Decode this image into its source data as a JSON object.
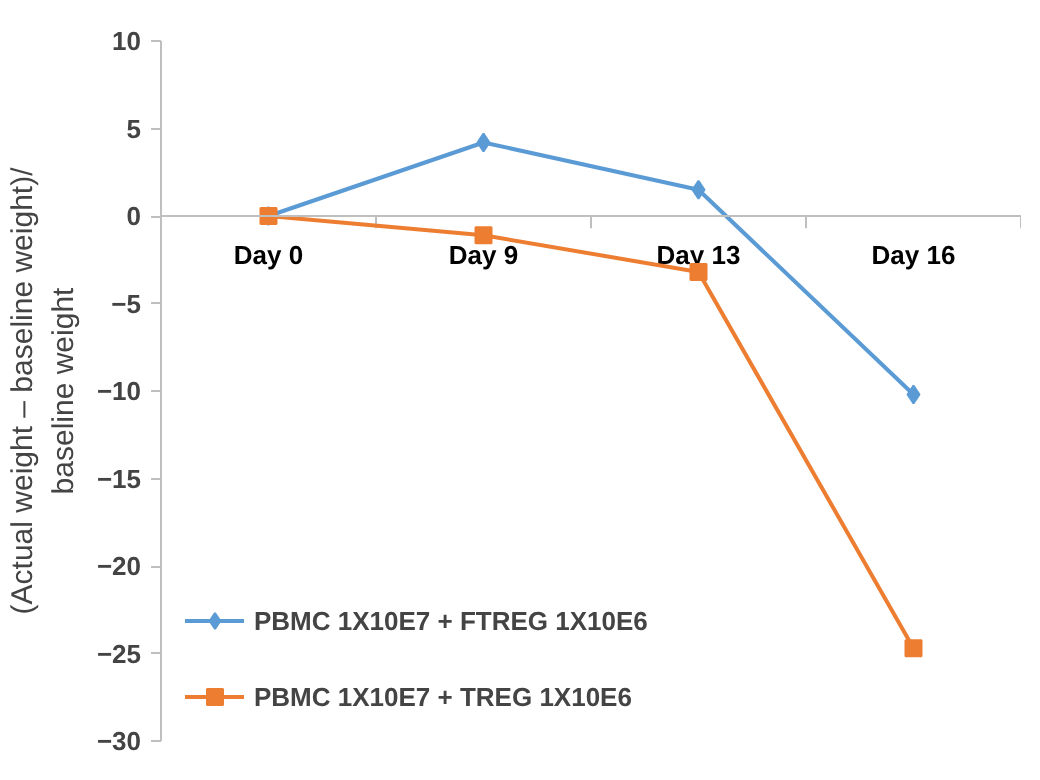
{
  "chart_data": {
    "type": "line",
    "ylabel": "(Actual weight – baseline weight)/\nbaseline weight",
    "categories": [
      "Day 0",
      "Day 9",
      "Day 13",
      "Day 16"
    ],
    "series": [
      {
        "name": "PBMC 1X10E7 + FTREG 1X10E6",
        "color": "#5b9bd5",
        "marker": "diamond",
        "values": [
          0,
          4.2,
          1.5,
          -10.2
        ]
      },
      {
        "name": "PBMC 1X10E7 + TREG 1X10E6",
        "color": "#ed7d31",
        "marker": "square",
        "values": [
          0,
          -1.1,
          -3.2,
          -24.7
        ]
      }
    ],
    "ylim": [
      -30,
      10
    ],
    "yticks": [
      -30,
      -25,
      -20,
      -15,
      -10,
      -5,
      0,
      5,
      10
    ],
    "grid": false,
    "legend": "bottom left"
  }
}
